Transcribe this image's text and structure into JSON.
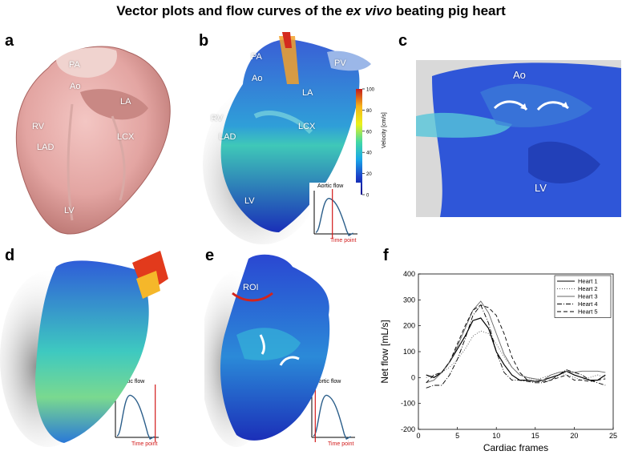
{
  "figure": {
    "title_prefix": "Vector plots and flow curves of the ",
    "title_italic": "ex vivo",
    "title_suffix": " beating pig heart"
  },
  "panels": {
    "a": {
      "label": "a",
      "annotations": [
        "PA",
        "Ao",
        "LA",
        "RV",
        "LAD",
        "LCX",
        "LV"
      ]
    },
    "b": {
      "label": "b",
      "annotations": [
        "PA",
        "Ao",
        "PV",
        "LA",
        "RV",
        "LAD",
        "LCX",
        "LV"
      ],
      "colorbar": {
        "title": "Velocity [cm/s]",
        "ticks": [
          "100",
          "80",
          "60",
          "40",
          "20",
          "0"
        ],
        "colors": [
          "#c51b1b",
          "#f7b51a",
          "#eaf21b",
          "#43d9a3",
          "#1aa7e8",
          "#1b3fc8",
          "#0b0f8a"
        ]
      },
      "inset": {
        "label": "Aortic flow",
        "time_point": "Time point"
      }
    },
    "c": {
      "label": "c",
      "annotations": [
        "Ao",
        "LV"
      ]
    },
    "d": {
      "label": "d",
      "inset": {
        "label": "Aortic flow",
        "time_point": "Time point"
      }
    },
    "e": {
      "label": "e",
      "annotations": [
        "ROI"
      ],
      "inset": {
        "label": "Aortic flow",
        "time_point": "Time point"
      }
    },
    "f": {
      "label": "f"
    }
  },
  "chart_data": {
    "type": "line",
    "xlabel": "Cardiac frames",
    "ylabel": "Net flow [mL/s]",
    "xlim": [
      0,
      25
    ],
    "ylim": [
      -200,
      400
    ],
    "xticks": [
      0,
      5,
      10,
      15,
      20,
      25
    ],
    "yticks": [
      -200,
      -100,
      0,
      100,
      200,
      300,
      400
    ],
    "legend": "top-right",
    "series": [
      {
        "name": "Heart 1",
        "style": "solid",
        "x": [
          1,
          2,
          3,
          4,
          5,
          6,
          7,
          8,
          9,
          10,
          11,
          12,
          13,
          14,
          15,
          16,
          17,
          18,
          19,
          20,
          21,
          22,
          23,
          24
        ],
        "y": [
          10,
          0,
          20,
          60,
          110,
          160,
          220,
          230,
          190,
          100,
          50,
          10,
          -10,
          -10,
          -15,
          -10,
          0,
          10,
          25,
          10,
          0,
          -10,
          -10,
          10
        ]
      },
      {
        "name": "Heart 2",
        "style": "dotted",
        "x": [
          1,
          2,
          3,
          4,
          5,
          6,
          7,
          8,
          9,
          10,
          11,
          12,
          13,
          14,
          15,
          16,
          17,
          18,
          19,
          20,
          21,
          22,
          23,
          24
        ],
        "y": [
          0,
          10,
          20,
          40,
          70,
          110,
          160,
          180,
          170,
          130,
          80,
          40,
          10,
          0,
          -10,
          0,
          10,
          20,
          10,
          0,
          -10,
          0,
          10,
          0
        ]
      },
      {
        "name": "Heart 3",
        "style": "solid",
        "x": [
          1,
          2,
          3,
          4,
          5,
          6,
          7,
          8,
          9,
          10,
          11,
          12,
          13,
          14,
          15,
          16,
          17,
          18,
          19,
          20,
          21,
          22,
          23,
          24
        ],
        "y": [
          -20,
          -10,
          20,
          60,
          120,
          190,
          260,
          295,
          250,
          170,
          90,
          40,
          10,
          0,
          -5,
          -10,
          10,
          20,
          25,
          20,
          25,
          25,
          25,
          20
        ]
      },
      {
        "name": "Heart 4",
        "style": "dashdot",
        "x": [
          1,
          2,
          3,
          4,
          5,
          6,
          7,
          8,
          9,
          10,
          11,
          12,
          13,
          14,
          15,
          16,
          17,
          18,
          19,
          20,
          21,
          22,
          23,
          24
        ],
        "y": [
          -40,
          -30,
          -30,
          10,
          70,
          150,
          240,
          280,
          210,
          100,
          20,
          -10,
          -10,
          -15,
          -20,
          -20,
          -10,
          10,
          30,
          20,
          10,
          -10,
          -20,
          -30
        ]
      },
      {
        "name": "Heart 5",
        "style": "dashed",
        "x": [
          1,
          2,
          3,
          4,
          5,
          6,
          7,
          8,
          9,
          10,
          11,
          12,
          13,
          14,
          15,
          16,
          17,
          18,
          19,
          20,
          21,
          22,
          23,
          24
        ],
        "y": [
          -20,
          10,
          20,
          60,
          130,
          200,
          260,
          280,
          270,
          240,
          170,
          80,
          20,
          -10,
          -15,
          -15,
          -10,
          0,
          10,
          -10,
          -10,
          -15,
          -10,
          -5
        ]
      }
    ]
  }
}
